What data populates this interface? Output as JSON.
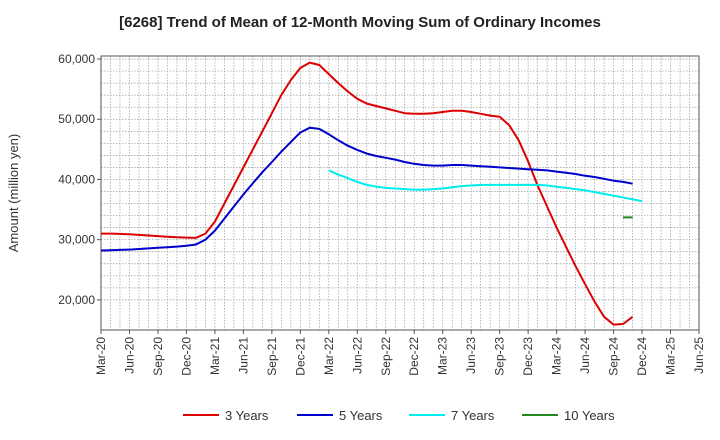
{
  "chart_data": {
    "type": "line",
    "title": "[6268]  Trend of Mean of 12-Month Moving Sum of Ordinary Incomes",
    "ylabel": "Amount (million yen)",
    "xlabel": "",
    "ylim": [
      15000,
      60500
    ],
    "yticks": [
      20000,
      30000,
      40000,
      50000,
      60000
    ],
    "ytick_labels": [
      "20,000",
      "30,000",
      "40,000",
      "50,000",
      "60,000"
    ],
    "x_ticks": [
      "Mar-20",
      "Jun-20",
      "Sep-20",
      "Dec-20",
      "Mar-21",
      "Jun-21",
      "Sep-21",
      "Dec-21",
      "Mar-22",
      "Jun-22",
      "Sep-22",
      "Dec-22",
      "Mar-23",
      "Jun-23",
      "Sep-23",
      "Dec-23",
      "Mar-24",
      "Jun-24",
      "Sep-24",
      "Dec-24",
      "Mar-25",
      "Jun-25"
    ],
    "grid": true,
    "legend_position": "bottom",
    "series": [
      {
        "name": "3 Years",
        "color": "#dd0000",
        "start_index": 0,
        "values": [
          31000,
          31000,
          30950,
          30900,
          30800,
          30700,
          30600,
          30500,
          30400,
          30350,
          30300,
          31000,
          33000,
          36000,
          39000,
          42000,
          45000,
          48000,
          51000,
          54000,
          56500,
          58500,
          59400,
          59000,
          57500,
          56000,
          54600,
          53400,
          52600,
          52200,
          51800,
          51400,
          51000,
          50900,
          50900,
          51000,
          51200,
          51400,
          51400,
          51200,
          50900,
          50600,
          50400,
          49000,
          46500,
          43000,
          39000,
          35500,
          32000,
          28800,
          25600,
          22600,
          19700,
          17200,
          15900,
          16000,
          17200
        ]
      },
      {
        "name": "5 Years",
        "color": "#0000cc",
        "start_index": 0,
        "values": [
          28200,
          28250,
          28300,
          28350,
          28450,
          28550,
          28650,
          28750,
          28850,
          29000,
          29200,
          30000,
          31500,
          33500,
          35500,
          37500,
          39400,
          41200,
          42900,
          44600,
          46200,
          47800,
          48600,
          48400,
          47500,
          46500,
          45600,
          44900,
          44300,
          43900,
          43600,
          43300,
          42900,
          42600,
          42400,
          42300,
          42300,
          42400,
          42400,
          42300,
          42200,
          42100,
          42000,
          41900,
          41800,
          41700,
          41600,
          41500,
          41300,
          41100,
          40900,
          40600,
          40400,
          40100,
          39800,
          39600,
          39300
        ]
      },
      {
        "name": "7 Years",
        "color": "#00eeee",
        "start_index": 24,
        "values": [
          41500,
          40800,
          40200,
          39600,
          39100,
          38800,
          38600,
          38500,
          38400,
          38300,
          38300,
          38400,
          38500,
          38700,
          38900,
          39000,
          39100,
          39100,
          39100,
          39100,
          39100,
          39100,
          39100,
          39000,
          38800,
          38600,
          38400,
          38200,
          37900,
          37600,
          37300,
          37000,
          36700,
          36400
        ]
      },
      {
        "name": "10 Years",
        "color": "#228822",
        "start_index": 55,
        "values": [
          33700,
          33700
        ]
      }
    ]
  }
}
